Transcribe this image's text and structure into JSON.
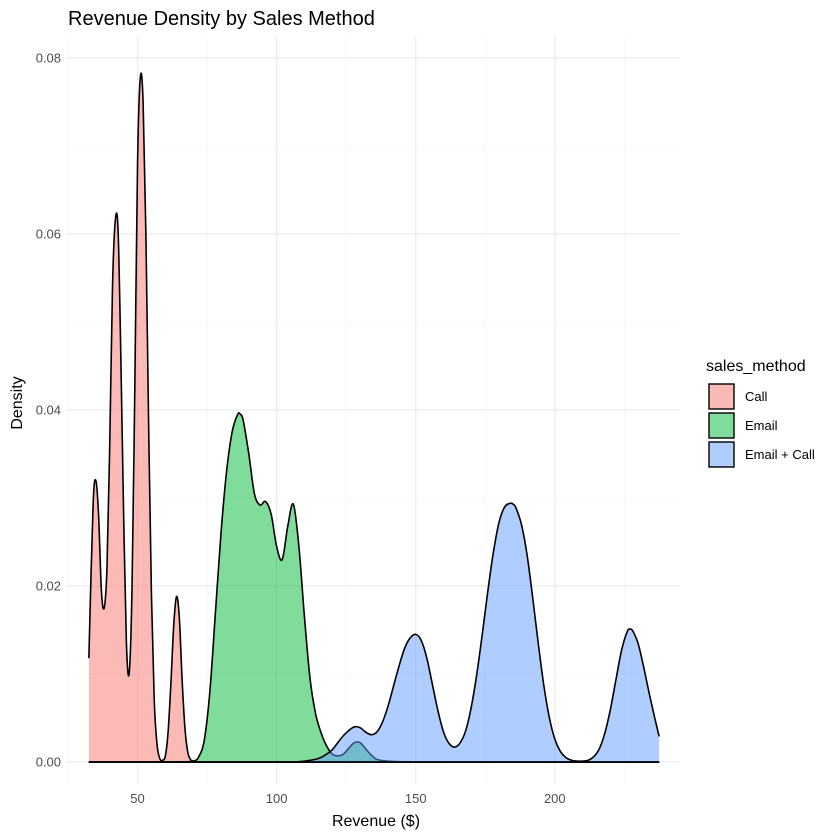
{
  "chart_data": {
    "type": "area",
    "title": "Revenue Density by Sales Method",
    "xlabel": "Revenue ($)",
    "ylabel": "Density",
    "xlim": [
      25,
      245
    ],
    "ylim": [
      -0.0025,
      0.0825
    ],
    "x_ticks": [
      50,
      100,
      150,
      200
    ],
    "y_ticks": [
      0.0,
      0.02,
      0.04,
      0.06,
      0.08
    ],
    "y_tick_labels": [
      "0.00",
      "0.02",
      "0.04",
      "0.06",
      "0.08"
    ],
    "grid": true,
    "legend": {
      "title": "sales_method",
      "position": "right"
    },
    "series": [
      {
        "name": "Call",
        "color": "#F8766D",
        "x": [
          32.5,
          34,
          35,
          36,
          37,
          38,
          39,
          40,
          41,
          42,
          43,
          44,
          45,
          46,
          47,
          48,
          49,
          50,
          51,
          52,
          53,
          54,
          55,
          56,
          57,
          58,
          59,
          60,
          61,
          62,
          63,
          64,
          65,
          66,
          67,
          68,
          69,
          70,
          71,
          72,
          74,
          76,
          80,
          90,
          100,
          110,
          120,
          130,
          140,
          150,
          160,
          170,
          180,
          190,
          200,
          210,
          220,
          230,
          237.5
        ],
        "y": [
          0.0118,
          0.029,
          0.032,
          0.028,
          0.0195,
          0.0175,
          0.022,
          0.036,
          0.054,
          0.0615,
          0.0605,
          0.046,
          0.028,
          0.0135,
          0.0101,
          0.0195,
          0.042,
          0.068,
          0.0778,
          0.075,
          0.06,
          0.038,
          0.019,
          0.007,
          0.002,
          0.0004,
          0.0002,
          0.0007,
          0.0035,
          0.009,
          0.0155,
          0.0188,
          0.0165,
          0.0095,
          0.004,
          0.0012,
          0.0003,
          0.0001,
          0.0,
          0.0,
          0.0,
          0.0,
          0.0,
          0.0,
          0.0,
          0.0,
          0.0,
          0.0,
          0.0,
          0.0,
          0.0,
          0.0,
          0.0,
          0.0,
          0.0,
          0.0,
          0.0,
          0.0,
          0.0
        ]
      },
      {
        "name": "Email",
        "color": "#00BA38",
        "x": [
          32.5,
          60,
          65,
          70,
          72,
          74,
          76,
          78,
          80,
          82,
          84,
          86,
          87,
          88,
          90,
          92,
          94,
          96,
          98,
          100,
          102,
          104,
          106,
          108,
          110,
          112,
          114,
          116,
          118,
          120,
          122,
          124,
          126,
          128,
          130,
          132,
          134,
          136,
          140,
          150,
          160,
          170,
          180,
          190,
          200,
          210,
          220,
          230,
          237.5
        ],
        "y": [
          0.0,
          0.0,
          0.0,
          0.0001,
          0.0006,
          0.0025,
          0.008,
          0.017,
          0.026,
          0.033,
          0.0375,
          0.0395,
          0.0395,
          0.0388,
          0.035,
          0.0305,
          0.0292,
          0.0296,
          0.0282,
          0.0245,
          0.023,
          0.0268,
          0.0293,
          0.0245,
          0.0165,
          0.0095,
          0.0055,
          0.0033,
          0.0018,
          0.0009,
          0.0007,
          0.0009,
          0.0016,
          0.0022,
          0.0022,
          0.0015,
          0.0008,
          0.0003,
          0.0001,
          0.0,
          0.0,
          0.0,
          0.0,
          0.0,
          0.0,
          0.0,
          0.0,
          0.0,
          0.0
        ]
      },
      {
        "name": "Email + Call",
        "color": "#619CFF",
        "x": [
          32.5,
          90,
          100,
          105,
          110,
          115,
          118,
          120,
          122,
          124,
          126,
          128,
          130,
          132,
          134,
          136,
          138,
          140,
          142,
          144,
          146,
          148,
          150,
          152,
          154,
          156,
          158,
          160,
          162,
          164,
          166,
          168,
          170,
          172,
          174,
          176,
          178,
          180,
          182,
          184,
          185,
          186,
          188,
          190,
          192,
          194,
          196,
          198,
          200,
          202,
          204,
          206,
          208,
          210,
          212,
          214,
          216,
          218,
          220,
          222,
          224,
          226,
          227,
          228,
          230,
          232,
          234,
          236,
          237.5
        ],
        "y": [
          0.0,
          0.0,
          0.0,
          0.0,
          0.0001,
          0.0004,
          0.0009,
          0.0014,
          0.0022,
          0.003,
          0.0036,
          0.004,
          0.0039,
          0.0034,
          0.0031,
          0.0034,
          0.0045,
          0.0063,
          0.0086,
          0.0109,
          0.0129,
          0.0141,
          0.0145,
          0.0138,
          0.0118,
          0.0088,
          0.0058,
          0.0034,
          0.0021,
          0.0017,
          0.0022,
          0.0036,
          0.0063,
          0.0101,
          0.0147,
          0.0196,
          0.024,
          0.0273,
          0.029,
          0.0294,
          0.0293,
          0.0289,
          0.027,
          0.0236,
          0.0188,
          0.0136,
          0.0088,
          0.0051,
          0.0026,
          0.0012,
          0.0005,
          0.0002,
          0.0001,
          0.0001,
          0.0002,
          0.0006,
          0.0015,
          0.0033,
          0.006,
          0.0094,
          0.0127,
          0.0148,
          0.0151,
          0.0149,
          0.0134,
          0.0107,
          0.0077,
          0.0049,
          0.0029
        ]
      }
    ]
  }
}
